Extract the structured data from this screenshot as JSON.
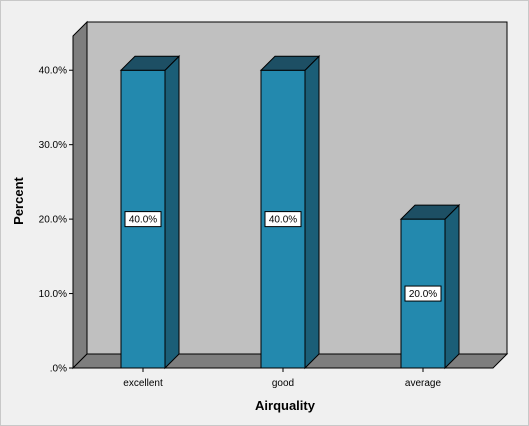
{
  "chart_data": {
    "type": "bar",
    "title": "",
    "categories": [
      "excellent",
      "good",
      "average"
    ],
    "values": [
      40.0,
      40.0,
      20.0
    ],
    "data_labels": [
      "40.0%",
      "40.0%",
      "20.0%"
    ],
    "xlabel": "Airquality",
    "ylabel": "Percent",
    "ylim": [
      0,
      40
    ],
    "yticks": [
      0,
      10,
      20,
      30,
      40
    ],
    "ytick_labels": [
      ".0%",
      "10.0%",
      "20.0%",
      "30.0%",
      "40.0%"
    ],
    "grid": false,
    "legend": "none",
    "style": "3d",
    "colors": {
      "bar_front": "#2389ae",
      "bar_side": "#1b5e77",
      "bar_top": "#1d4f64",
      "plot_back": "#c0c0c0",
      "plot_left_wall": "#7e7e7e",
      "plot_floor": "#7e7e7e",
      "label_box": "#ffffff"
    }
  }
}
